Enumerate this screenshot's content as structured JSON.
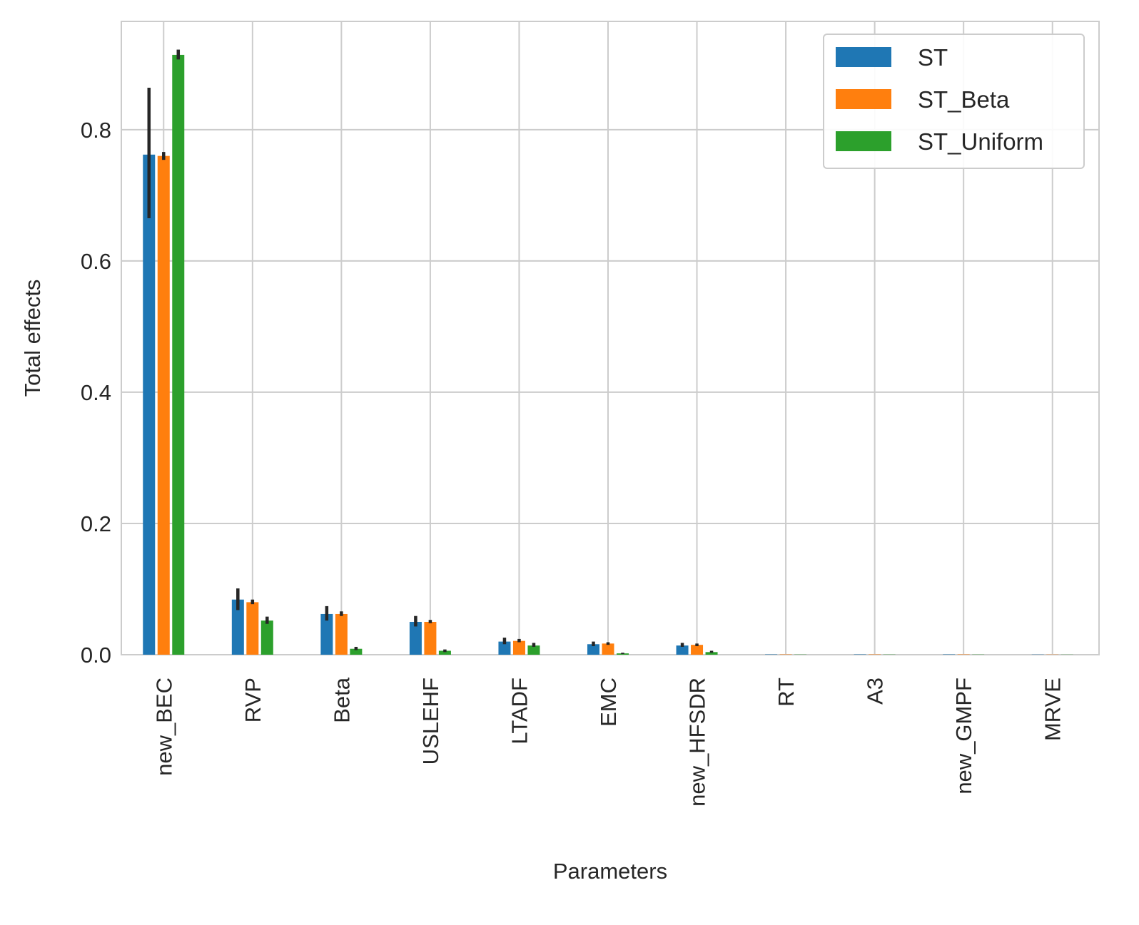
{
  "chart_data": {
    "type": "bar",
    "title": "",
    "xlabel": "Parameters",
    "ylabel": "Total effects",
    "ylim": [
      0,
      0.965
    ],
    "yticks": [
      0.0,
      0.2,
      0.4,
      0.6,
      0.8
    ],
    "ytick_labels": [
      "0.0",
      "0.2",
      "0.4",
      "0.6",
      "0.8"
    ],
    "grid": true,
    "legend": "top-right",
    "categories": [
      "new_BEC",
      "RVP",
      "Beta",
      "USLEHF",
      "LTADF",
      "EMC",
      "new_HFSDR",
      "RT",
      "A3",
      "new_GMPF",
      "MRVE"
    ],
    "series": [
      {
        "name": "ST",
        "color": "#1f77b4",
        "values": [
          0.762,
          0.084,
          0.062,
          0.05,
          0.02,
          0.016,
          0.014,
          0.0005,
          0.0005,
          0.0005,
          0.0003
        ],
        "error_low": [
          0.665,
          0.068,
          0.052,
          0.043,
          0.016,
          0.013,
          0.012,
          0.0004,
          0.0004,
          0.0004,
          0.0002
        ],
        "error_high": [
          0.864,
          0.101,
          0.074,
          0.059,
          0.026,
          0.02,
          0.018,
          0.0007,
          0.0007,
          0.0007,
          0.0005
        ]
      },
      {
        "name": "ST_Beta",
        "color": "#ff7f0e",
        "values": [
          0.76,
          0.08,
          0.062,
          0.05,
          0.021,
          0.017,
          0.015,
          0.0005,
          0.0005,
          0.0005,
          0.0003
        ],
        "error_low": [
          0.754,
          0.077,
          0.059,
          0.048,
          0.019,
          0.015,
          0.013,
          0.0004,
          0.0004,
          0.0004,
          0.0002
        ],
        "error_high": [
          0.766,
          0.084,
          0.066,
          0.053,
          0.024,
          0.019,
          0.017,
          0.0007,
          0.0007,
          0.0007,
          0.0005
        ]
      },
      {
        "name": "ST_Uniform",
        "color": "#2ca02c",
        "values": [
          0.914,
          0.052,
          0.009,
          0.006,
          0.014,
          0.002,
          0.004,
          0.0003,
          0.0003,
          0.0003,
          0.0002
        ],
        "error_low": [
          0.907,
          0.047,
          0.007,
          0.004,
          0.012,
          0.001,
          0.003,
          0.0002,
          0.0002,
          0.0002,
          0.0001
        ],
        "error_high": [
          0.922,
          0.058,
          0.012,
          0.008,
          0.018,
          0.003,
          0.006,
          0.0004,
          0.0004,
          0.0004,
          0.0003
        ]
      }
    ]
  }
}
